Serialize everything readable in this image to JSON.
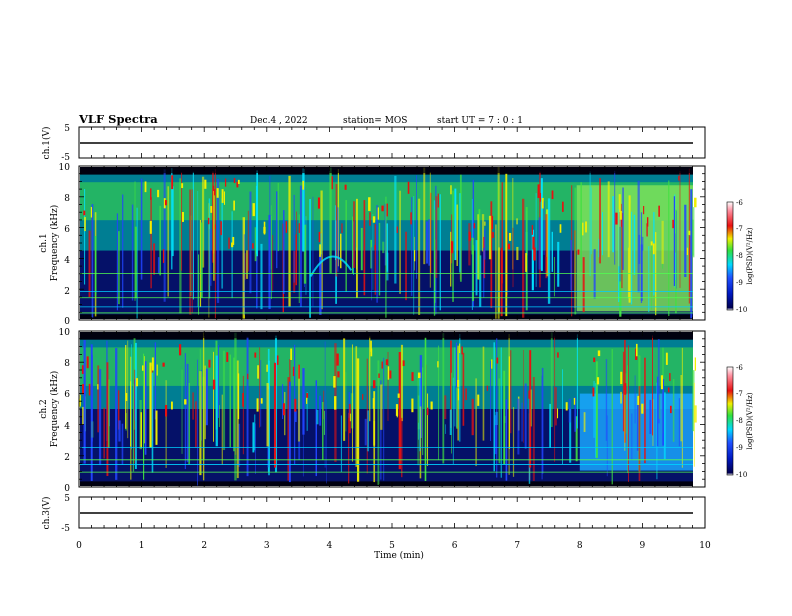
{
  "header": {
    "title": "VLF Spectra",
    "date": "Dec.4 , 2022",
    "station": "station= MOS",
    "start": "start  UT  =   7 : 0  : 1"
  },
  "colors": {
    "background": "#000010",
    "dark_blue": "#0a1fb0",
    "blue": "#2244ff",
    "cyan": "#00e5ff",
    "green": "#40e040",
    "yellow": "#f0f000",
    "red": "#e81010",
    "line_cyan": "#00d0ff",
    "line_green": "#50ff50"
  },
  "chart_data": [
    {
      "type": "line",
      "name": "ch1-waveform",
      "ylabel": "ch.1(V)",
      "ylim": [
        -5,
        5
      ],
      "yticks": [
        "5",
        "-5"
      ],
      "xlim": [
        0,
        10
      ],
      "trace_level_v": -0.5
    },
    {
      "type": "heatmap",
      "name": "ch1-spectrogram",
      "ylabel_line1": "ch.1",
      "ylabel_line2": "Frequency (kHz)",
      "ylim": [
        0,
        10
      ],
      "yticks": [
        "0",
        "2",
        "4",
        "6",
        "8",
        "10"
      ],
      "xlim": [
        0,
        10
      ],
      "colorbar": {
        "label": "log(PSD)(V²/Hz)",
        "ticks": [
          "-6",
          "-7",
          "-8",
          "-9",
          "-10"
        ],
        "range": [
          -10,
          -6
        ]
      },
      "upper_band_khz": [
        4.5,
        9.5
      ],
      "burst_start_min": 7.95,
      "burst_band_khz": [
        0.5,
        8.8
      ],
      "horizontal_lines_khz": [
        0.4,
        0.8,
        1.4,
        1.8,
        3.0
      ],
      "rising_tone_min": [
        3.7,
        4.35
      ]
    },
    {
      "type": "heatmap",
      "name": "ch2-spectrogram",
      "ylabel_line1": "ch.2",
      "ylabel_line2": "Frequency (kHz)",
      "ylim": [
        0,
        10
      ],
      "yticks": [
        "0",
        "2",
        "4",
        "6",
        "8",
        "10"
      ],
      "xlim": [
        0,
        10
      ],
      "colorbar": {
        "label": "log(PSD)(V²/Hz)",
        "ticks": [
          "-6",
          "-7",
          "-8",
          "-9",
          "-10"
        ],
        "range": [
          -10,
          -6
        ]
      },
      "upper_band_khz": [
        5.0,
        9.5
      ],
      "burst_start_min": 8.0,
      "burst_band_khz": [
        1.0,
        6.0
      ],
      "horizontal_lines_khz": [
        0.9,
        1.4,
        1.7,
        2.5
      ]
    },
    {
      "type": "line",
      "name": "ch3-waveform",
      "ylabel": "ch.3(V)",
      "ylim": [
        -5,
        5
      ],
      "yticks": [
        "5",
        "-5"
      ],
      "xlim": [
        0,
        10
      ],
      "trace_level_v": -0.5
    }
  ],
  "x_axis": {
    "label": "Time (min)",
    "ticks": [
      "0",
      "1",
      "2",
      "3",
      "4",
      "5",
      "6",
      "7",
      "8",
      "9",
      "10"
    ]
  }
}
